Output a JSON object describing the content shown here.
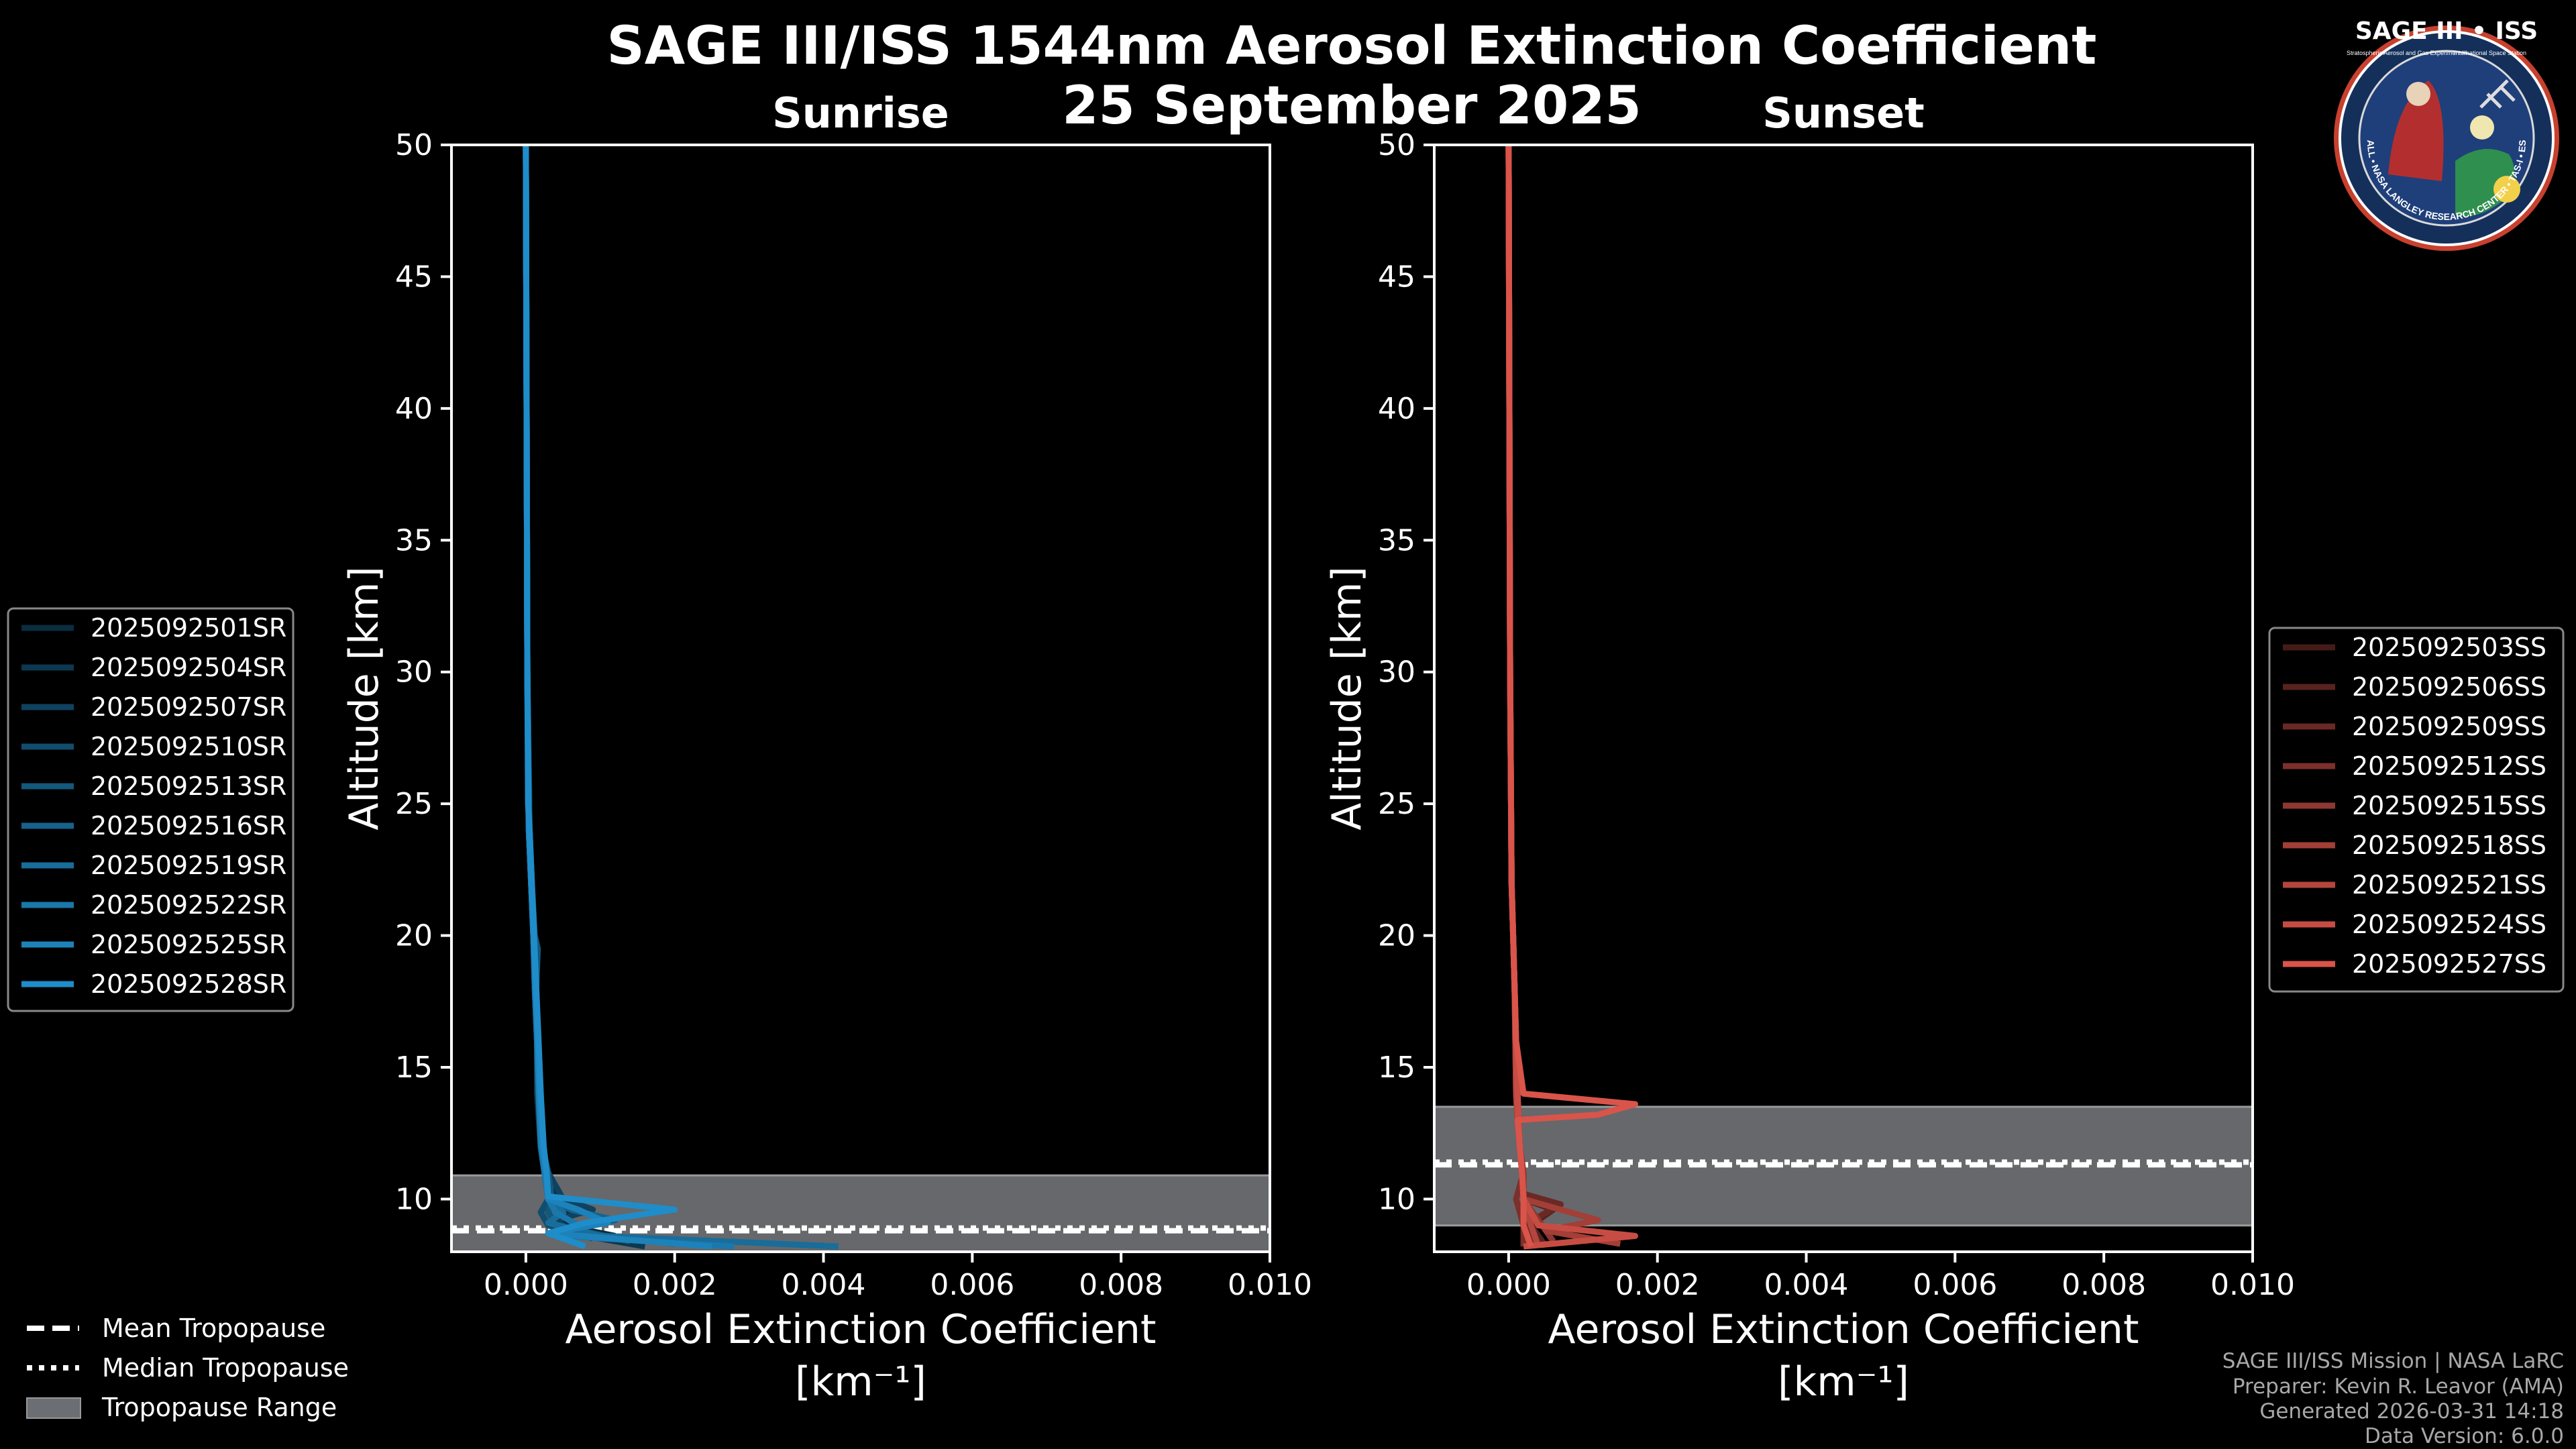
{
  "title_line1": "SAGE III/ISS 1544nm Aerosol Extinction Coefficient",
  "title_line2": "25 September 2025",
  "logo": {
    "title": "SAGE III • ISS",
    "ring_text": "BALL • NASA LANGLEY RESEARCH CENTER • TAS-I • ESA",
    "small_left": "Stratospheric Aerosol and Gas Experiment III",
    "small_right": "International Space Station"
  },
  "legend_tropopause": [
    "Mean Tropopause",
    "Median Tropopause",
    "Tropopause Range"
  ],
  "credits": [
    "SAGE III/ISS Mission | NASA LaRC",
    "Preparer: Kevin R. Leavor (AMA)",
    "Generated 2026-03-31 14:18",
    "Data Version: 6.0.0"
  ],
  "colors": {
    "sunrise_base": "#1f8dc9",
    "sunset_base": "#d9544a",
    "tropopause_fill": "#6b6e72"
  },
  "chart_data": [
    {
      "type": "line",
      "title": "Sunrise",
      "xlabel": "Aerosol Extinction Coefficient",
      "xlabel_units": "[km⁻¹]",
      "ylabel": "Altitude [km]",
      "xlim": [
        -0.001,
        0.01
      ],
      "ylim": [
        8,
        50
      ],
      "xticks": [
        "0.000",
        "0.002",
        "0.004",
        "0.006",
        "0.008",
        "0.010"
      ],
      "yticks": [
        "10",
        "15",
        "20",
        "25",
        "30",
        "35",
        "40",
        "45",
        "50"
      ],
      "tropopause": {
        "mean": 8.8,
        "median": 8.9,
        "min": 8.0,
        "max": 10.9
      },
      "series": [
        {
          "name": "2025092501SR",
          "alt": [
            8.6,
            9.0,
            9.5,
            10,
            11,
            12,
            14,
            16,
            18,
            20,
            22,
            24,
            25,
            30,
            40,
            50
          ],
          "ext": [
            0.0012,
            0.0005,
            0.0006,
            0.0004,
            0.00025,
            0.0002,
            0.00018,
            0.00015,
            0.00012,
            0.0001,
            7e-05,
            4e-05,
            3e-05,
            2e-05,
            1e-05,
            0.0
          ]
        },
        {
          "name": "2025092504SR",
          "alt": [
            8.2,
            8.6,
            9.0,
            9.5,
            10,
            11,
            12,
            14,
            16,
            18,
            20,
            22,
            24,
            30,
            40,
            50
          ],
          "ext": [
            0.0016,
            0.0008,
            0.0004,
            0.0003,
            0.0003,
            0.00025,
            0.0002,
            0.00015,
            0.00015,
            0.00012,
            0.0001,
            7e-05,
            4e-05,
            2e-05,
            1e-05,
            0.0
          ]
        },
        {
          "name": "2025092507SR",
          "alt": [
            8.8,
            9.2,
            9.6,
            10,
            11,
            12,
            14,
            16,
            18,
            20,
            22,
            24,
            30,
            40,
            50
          ],
          "ext": [
            0.0006,
            0.0004,
            0.0009,
            0.0005,
            0.0003,
            0.0002,
            0.00018,
            0.00016,
            0.00013,
            0.00011,
            8e-05,
            5e-05,
            2e-05,
            1e-05,
            0.0
          ]
        },
        {
          "name": "2025092510SR",
          "alt": [
            8.5,
            9.0,
            9.5,
            10,
            11,
            12,
            14,
            16,
            18,
            20,
            22,
            24,
            30,
            40,
            50
          ],
          "ext": [
            0.0009,
            0.0003,
            0.0002,
            0.0003,
            0.00028,
            0.00022,
            0.0002,
            0.00017,
            0.00014,
            0.0001,
            8e-05,
            5e-05,
            2e-05,
            1e-05,
            0.0
          ]
        },
        {
          "name": "2025092513SR",
          "alt": [
            8.4,
            9.0,
            9.5,
            10,
            11,
            12,
            14,
            16,
            18,
            19.5,
            20,
            22,
            24.5,
            30,
            40,
            50
          ],
          "ext": [
            0.0014,
            0.0004,
            0.0003,
            0.00035,
            0.0003,
            0.00022,
            0.00018,
            0.00016,
            0.00014,
            0.00016,
            0.00012,
            8e-05,
            4e-05,
            2e-05,
            1e-05,
            0.0
          ]
        },
        {
          "name": "2025092516SR",
          "alt": [
            8.3,
            8.8,
            9.2,
            9.6,
            10,
            11,
            12,
            14,
            16,
            18,
            20,
            22,
            24,
            30,
            40,
            50
          ],
          "ext": [
            0.002,
            0.0004,
            0.0012,
            0.0006,
            0.0003,
            0.00025,
            0.0002,
            0.00017,
            0.00015,
            0.00012,
            0.0001,
            7e-05,
            4e-05,
            2e-05,
            1e-05,
            0.0
          ]
        },
        {
          "name": "2025092519SR",
          "alt": [
            8.2,
            8.6,
            9.1,
            9.5,
            10,
            11,
            12,
            14,
            16,
            18,
            20,
            22,
            24,
            30,
            40,
            50
          ],
          "ext": [
            0.0042,
            0.001,
            0.0003,
            0.0005,
            0.0003,
            0.00025,
            0.00022,
            0.00018,
            0.00016,
            0.00013,
            0.0001,
            7e-05,
            4e-05,
            2e-05,
            1e-05,
            0.0
          ]
        },
        {
          "name": "2025092522SR",
          "alt": [
            8.2,
            8.6,
            9.0,
            9.5,
            10,
            11,
            12,
            14,
            16,
            18,
            20,
            22,
            24,
            30,
            40,
            50
          ],
          "ext": [
            0.0028,
            0.0005,
            0.0007,
            0.0004,
            0.0003,
            0.00025,
            0.0002,
            0.00017,
            0.00015,
            0.00012,
            0.0001,
            7e-05,
            4e-05,
            2e-05,
            1e-05,
            0.0
          ]
        },
        {
          "name": "2025092525SR",
          "alt": [
            8.2,
            8.7,
            9.1,
            9.6,
            10,
            11,
            12,
            14,
            16,
            18,
            20,
            22,
            24,
            30,
            40,
            50
          ],
          "ext": [
            0.0025,
            0.0003,
            0.0011,
            0.0007,
            0.0003,
            0.00027,
            0.00022,
            0.00018,
            0.00016,
            0.00013,
            0.0001,
            7e-05,
            4e-05,
            2e-05,
            1e-05,
            0.0
          ]
        },
        {
          "name": "2025092528SR",
          "alt": [
            8.2,
            8.7,
            9.1,
            9.6,
            10.1,
            11,
            12,
            14,
            16,
            18,
            20,
            22,
            24,
            25,
            30,
            40,
            50
          ],
          "ext": [
            0.0008,
            0.0003,
            0.0008,
            0.002,
            0.0003,
            0.00028,
            0.00024,
            0.0002,
            0.00017,
            0.00014,
            0.00011,
            8e-05,
            5e-05,
            3e-05,
            2e-05,
            1e-05,
            0.0
          ]
        }
      ]
    },
    {
      "type": "line",
      "title": "Sunset",
      "xlabel": "Aerosol Extinction Coefficient",
      "xlabel_units": "[km⁻¹]",
      "ylabel": "Altitude [km]",
      "xlim": [
        -0.001,
        0.01
      ],
      "ylim": [
        8,
        50
      ],
      "xticks": [
        "0.000",
        "0.002",
        "0.004",
        "0.006",
        "0.008",
        "0.010"
      ],
      "yticks": [
        "10",
        "15",
        "20",
        "25",
        "30",
        "35",
        "40",
        "45",
        "50"
      ],
      "tropopause": {
        "mean": 11.3,
        "median": 11.4,
        "min": 9.0,
        "max": 13.5
      },
      "series": [
        {
          "name": "2025092503SS",
          "alt": [
            8.2,
            9,
            10,
            11,
            12,
            13,
            14,
            16,
            18,
            20,
            22,
            30,
            40,
            50
          ],
          "ext": [
            0.0003,
            0.0002,
            0.0002,
            0.00018,
            0.00015,
            0.00012,
            0.0001,
            9e-05,
            8e-05,
            6e-05,
            4e-05,
            2e-05,
            1e-05,
            0.0
          ]
        },
        {
          "name": "2025092506SS",
          "alt": [
            8.2,
            9,
            9.6,
            10,
            11,
            12,
            14,
            16,
            18,
            20,
            22,
            30,
            40,
            50
          ],
          "ext": [
            0.0005,
            0.0003,
            0.0006,
            0.0002,
            0.00018,
            0.00015,
            0.00012,
            0.0001,
            8e-05,
            6e-05,
            4e-05,
            2e-05,
            1e-05,
            0.0
          ]
        },
        {
          "name": "2025092509SS",
          "alt": [
            8.2,
            9,
            9.8,
            10.2,
            11,
            12,
            14,
            16,
            18,
            20,
            22,
            30,
            40,
            50
          ],
          "ext": [
            0.0004,
            0.0002,
            0.0007,
            0.0002,
            0.00018,
            0.00015,
            0.00012,
            0.0001,
            8e-05,
            6e-05,
            4e-05,
            2e-05,
            1e-05,
            0.0
          ]
        },
        {
          "name": "2025092512SS",
          "alt": [
            8.2,
            9,
            10,
            11,
            12,
            13,
            14,
            16,
            18,
            20,
            22,
            30,
            40,
            50
          ],
          "ext": [
            0.0002,
            0.0002,
            0.0001,
            0.0002,
            0.00015,
            0.00012,
            0.0001,
            9e-05,
            8e-05,
            6e-05,
            4e-05,
            2e-05,
            1e-05,
            0.0
          ]
        },
        {
          "name": "2025092515SS",
          "alt": [
            8.4,
            9.2,
            10,
            11,
            12,
            14,
            16,
            18,
            20,
            22,
            30,
            40,
            50
          ],
          "ext": [
            0.0006,
            0.0004,
            0.0002,
            0.0002,
            0.00015,
            0.00012,
            0.0001,
            8e-05,
            6e-05,
            4e-05,
            2e-05,
            1e-05,
            0.0
          ]
        },
        {
          "name": "2025092518SS",
          "alt": [
            8.3,
            8.8,
            9.2,
            10,
            11,
            12,
            14,
            16,
            18,
            20,
            22,
            30,
            40,
            50
          ],
          "ext": [
            0.0015,
            0.0005,
            0.0012,
            0.0002,
            0.00018,
            0.00015,
            0.00012,
            0.0001,
            8e-05,
            6e-05,
            4e-05,
            2e-05,
            1e-05,
            0.0
          ]
        },
        {
          "name": "2025092521SS",
          "alt": [
            8.2,
            9,
            10,
            11,
            12,
            13,
            14,
            16,
            18,
            20,
            22,
            30,
            40,
            50
          ],
          "ext": [
            0.0004,
            0.0003,
            0.0002,
            0.00018,
            0.00015,
            0.00012,
            0.0001,
            9e-05,
            8e-05,
            6e-05,
            4e-05,
            2e-05,
            1e-05,
            0.0
          ]
        },
        {
          "name": "2025092524SS",
          "alt": [
            8.2,
            8.6,
            9.0,
            10,
            11,
            12,
            14,
            16,
            18,
            20,
            22,
            30,
            40,
            50
          ],
          "ext": [
            0.0002,
            0.0017,
            0.0004,
            0.0002,
            0.00018,
            0.00015,
            0.00012,
            0.0001,
            8e-05,
            6e-05,
            4e-05,
            2e-05,
            1e-05,
            0.0
          ]
        },
        {
          "name": "2025092527SS",
          "alt": [
            8.2,
            9,
            10,
            11,
            12,
            13,
            13.2,
            13.6,
            14.0,
            16,
            18,
            20,
            22,
            30,
            40,
            50
          ],
          "ext": [
            0.0003,
            0.0002,
            0.0002,
            0.00018,
            0.00015,
            0.00012,
            0.0012,
            0.0017,
            0.0002,
            0.0001,
            8e-05,
            6e-05,
            4e-05,
            2e-05,
            1e-05,
            0.0
          ]
        }
      ]
    }
  ]
}
